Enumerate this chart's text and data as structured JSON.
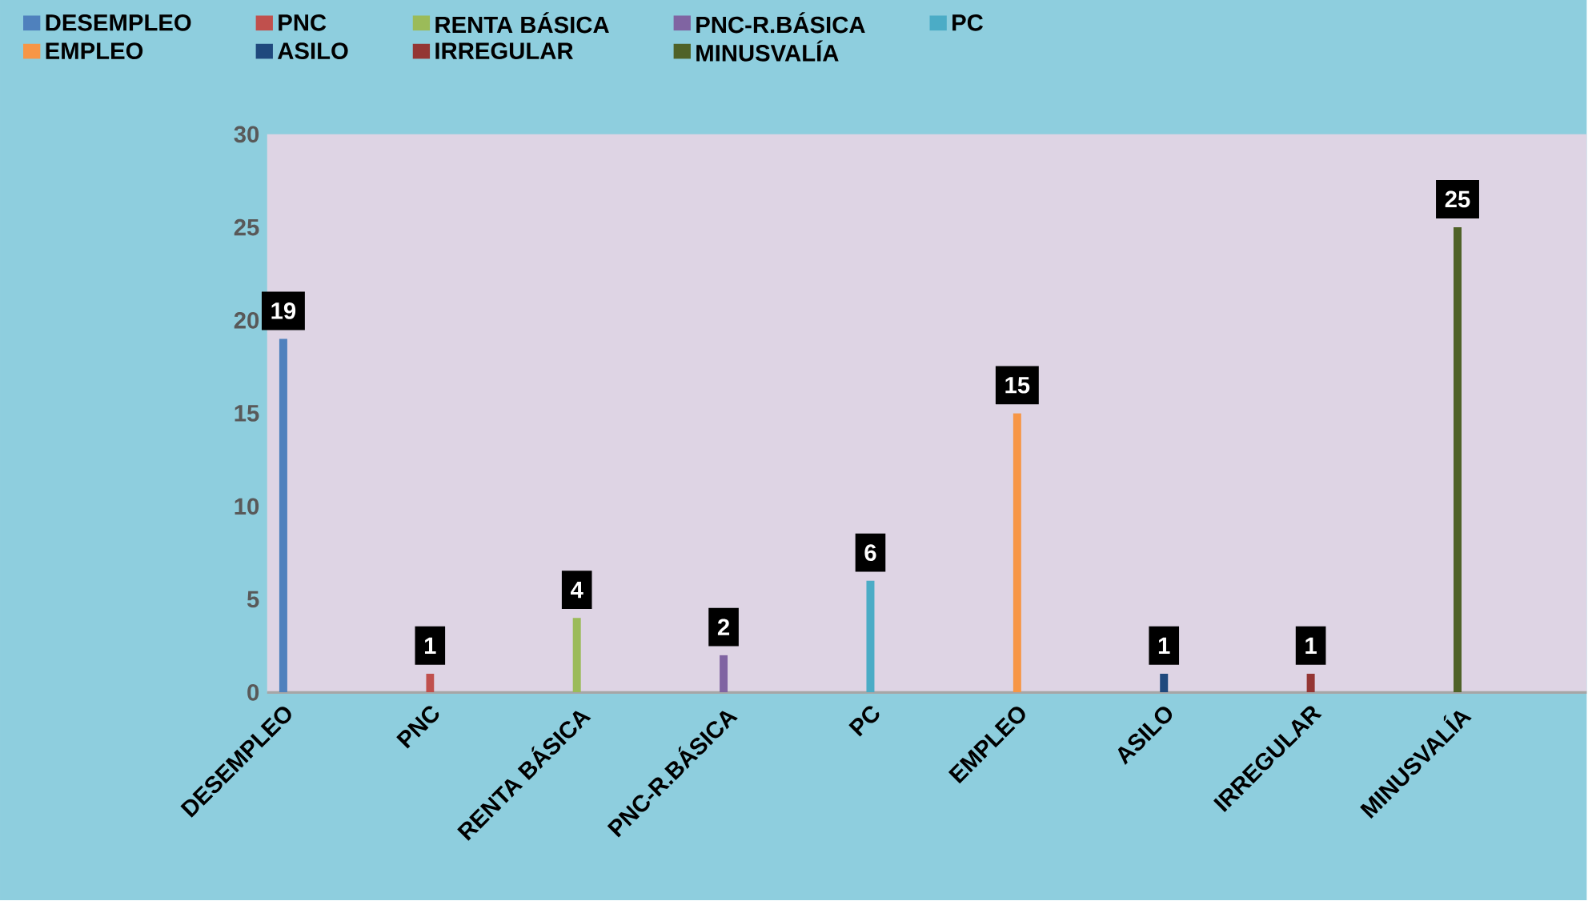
{
  "chart_data": {
    "type": "bar",
    "categories": [
      "DESEMPLEO",
      "PNC",
      "RENTA BÁSICA",
      "PNC-R.BÁSICA",
      "PC",
      "EMPLEO",
      "ASILO",
      "IRREGULAR",
      "MINUSVALÍA"
    ],
    "series": [
      {
        "name": "DESEMPLEO",
        "color": "#4f81bd",
        "values": [
          19,
          null,
          null,
          null,
          null,
          null,
          null,
          null,
          null
        ]
      },
      {
        "name": "PNC",
        "color": "#c0504d",
        "values": [
          null,
          1,
          null,
          null,
          null,
          null,
          null,
          null,
          null
        ]
      },
      {
        "name": "RENTA BÁSICA",
        "color": "#9bbb59",
        "values": [
          null,
          null,
          4,
          null,
          null,
          null,
          null,
          null,
          null
        ]
      },
      {
        "name": "PNC-R.BÁSICA",
        "color": "#8064a2",
        "values": [
          null,
          null,
          null,
          2,
          null,
          null,
          null,
          null,
          null
        ]
      },
      {
        "name": "PC",
        "color": "#4bacc6",
        "values": [
          null,
          null,
          null,
          null,
          6,
          null,
          null,
          null,
          null
        ]
      },
      {
        "name": "EMPLEO",
        "color": "#f79646",
        "values": [
          null,
          null,
          null,
          null,
          null,
          15,
          null,
          null,
          null
        ]
      },
      {
        "name": "ASILO",
        "color": "#1f497d",
        "values": [
          null,
          null,
          null,
          null,
          null,
          null,
          1,
          null,
          null
        ]
      },
      {
        "name": "IRREGULAR",
        "color": "#943634",
        "values": [
          null,
          null,
          null,
          null,
          null,
          null,
          null,
          1,
          null
        ]
      },
      {
        "name": "MINUSVALÍA",
        "color": "#4f6228",
        "values": [
          null,
          null,
          null,
          null,
          null,
          null,
          null,
          null,
          25
        ]
      }
    ],
    "ylim": [
      0,
      30
    ],
    "yticks": [
      0,
      5,
      10,
      15,
      20,
      25,
      30
    ],
    "data_labels": true,
    "legend": "top",
    "grid": false
  }
}
